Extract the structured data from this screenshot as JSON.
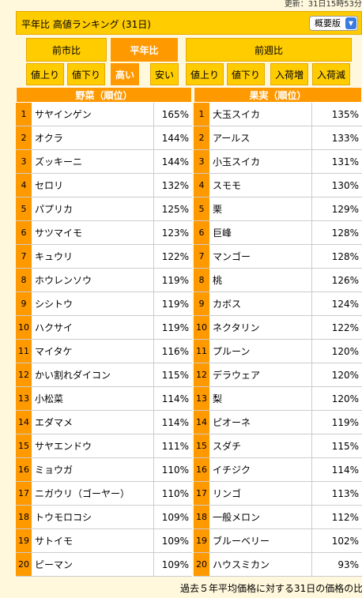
{
  "header": {
    "updated": "更新：31日15時53分",
    "title": "平年比 高値ランキング (31日)",
    "select": "概要版"
  },
  "tabs": {
    "main": [
      "前市比",
      "平年比",
      "前週比"
    ],
    "sub": [
      "値上り",
      "値下り",
      "高い",
      "安い",
      "値上り",
      "値下り",
      "入荷増",
      "入荷減"
    ]
  },
  "tables": [
    {
      "title": "野菜（順位）",
      "rows": [
        [
          1,
          "サヤインゲン",
          "165%"
        ],
        [
          2,
          "オクラ",
          "144%"
        ],
        [
          3,
          "ズッキーニ",
          "144%"
        ],
        [
          4,
          "セロリ",
          "132%"
        ],
        [
          5,
          "パプリカ",
          "125%"
        ],
        [
          6,
          "サツマイモ",
          "123%"
        ],
        [
          7,
          "キュウリ",
          "122%"
        ],
        [
          8,
          "ホウレンソウ",
          "119%"
        ],
        [
          9,
          "シシトウ",
          "119%"
        ],
        [
          10,
          "ハクサイ",
          "119%"
        ],
        [
          11,
          "マイタケ",
          "116%"
        ],
        [
          12,
          "かい割れダイコン",
          "115%"
        ],
        [
          13,
          "小松菜",
          "114%"
        ],
        [
          14,
          "エダマメ",
          "114%"
        ],
        [
          15,
          "サヤエンドウ",
          "111%"
        ],
        [
          16,
          "ミョウガ",
          "110%"
        ],
        [
          17,
          "ニガウリ（ゴーヤー）",
          "110%"
        ],
        [
          18,
          "トウモロコシ",
          "109%"
        ],
        [
          19,
          "サトイモ",
          "109%"
        ],
        [
          20,
          "ピーマン",
          "109%"
        ]
      ]
    },
    {
      "title": "果実（順位）",
      "rows": [
        [
          1,
          "大玉スイカ",
          "135%"
        ],
        [
          2,
          "アールス",
          "133%"
        ],
        [
          3,
          "小玉スイカ",
          "131%"
        ],
        [
          4,
          "スモモ",
          "130%"
        ],
        [
          5,
          "栗",
          "129%"
        ],
        [
          6,
          "巨峰",
          "128%"
        ],
        [
          7,
          "マンゴー",
          "128%"
        ],
        [
          8,
          "桃",
          "126%"
        ],
        [
          9,
          "カボス",
          "124%"
        ],
        [
          10,
          "ネクタリン",
          "122%"
        ],
        [
          11,
          "プルーン",
          "120%"
        ],
        [
          12,
          "デラウェア",
          "120%"
        ],
        [
          13,
          "梨",
          "120%"
        ],
        [
          14,
          "ピオーネ",
          "119%"
        ],
        [
          15,
          "スダチ",
          "115%"
        ],
        [
          16,
          "イチジク",
          "114%"
        ],
        [
          17,
          "リンゴ",
          "113%"
        ],
        [
          18,
          "一般メロン",
          "112%"
        ],
        [
          19,
          "ブルーベリー",
          "102%"
        ],
        [
          20,
          "ハウスミカン",
          "93%"
        ]
      ]
    }
  ],
  "footer": "過去５年平均価格に対する31日の価格の比"
}
